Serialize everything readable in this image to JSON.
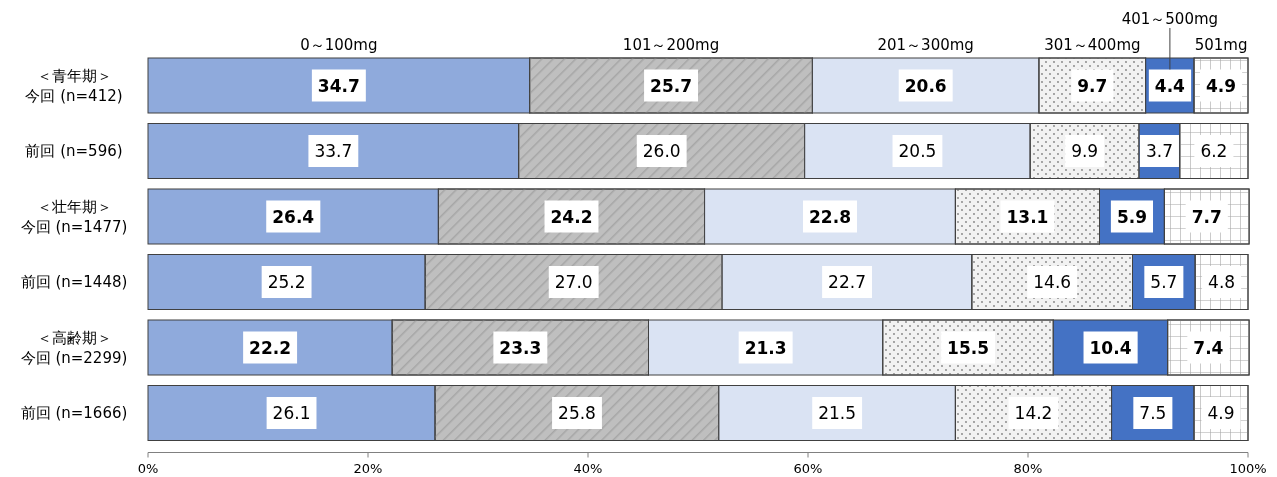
{
  "chart_data": {
    "type": "bar",
    "orientation": "horizontal",
    "stacked": true,
    "legend": "top",
    "data_labels": true,
    "categories": [
      "＜青年期＞今回 (n=412)",
      "前回 (n=596)",
      "＜壮年期＞今回 (n=1477)",
      "前回 (n=1448)",
      "＜高齢期＞今回 (n=2299)",
      "前回 (n=1666)"
    ],
    "series": [
      {
        "name": "0～100mg",
        "color": "#8faadc",
        "values": [
          34.7,
          33.7,
          26.4,
          25.2,
          22.2,
          26.1
        ],
        "value_labels": [
          "34.7",
          "33.7",
          "26.4",
          "25.2",
          "22.2",
          "26.1"
        ]
      },
      {
        "name": "101～200mg",
        "color": "#bfbfbf",
        "values": [
          25.7,
          26.0,
          24.2,
          27.0,
          23.3,
          25.8
        ],
        "value_labels": [
          "25.7",
          "26.0",
          "24.2",
          "27.0",
          "23.3",
          "25.8"
        ]
      },
      {
        "name": "201～300mg",
        "color": "#dae3f3",
        "values": [
          20.6,
          20.5,
          22.8,
          22.7,
          21.3,
          21.5
        ],
        "value_labels": [
          "20.6",
          "20.5",
          "22.8",
          "22.7",
          "21.3",
          "21.5"
        ]
      },
      {
        "name": "301～400mg",
        "color": "#f2f2f2",
        "values": [
          9.7,
          9.9,
          13.1,
          14.6,
          15.5,
          14.2
        ],
        "value_labels": [
          "9.7",
          "9.9",
          "13.1",
          "14.6",
          "15.5",
          "14.2"
        ]
      },
      {
        "name": "401～500mg",
        "color": "#4472c4",
        "values": [
          4.4,
          3.7,
          5.9,
          5.7,
          10.4,
          7.5
        ],
        "value_labels": [
          "4.4",
          "3.7",
          "5.9",
          "5.7",
          "10.4",
          "7.5"
        ]
      },
      {
        "name": "501mg",
        "color": "#ffffff",
        "values": [
          4.9,
          6.2,
          7.7,
          4.8,
          7.4,
          4.9
        ],
        "value_labels": [
          "4.9",
          "6.2",
          "7.7",
          "4.8",
          "7.4",
          "4.9"
        ]
      }
    ],
    "xlim": [
      0,
      100
    ],
    "xticks": [
      {
        "value": 0,
        "label": "0%"
      },
      {
        "value": 20,
        "label": "20%"
      },
      {
        "value": 40,
        "label": "40%"
      },
      {
        "value": 60,
        "label": "60%"
      },
      {
        "value": 80,
        "label": "80%"
      },
      {
        "value": 100,
        "label": "100%"
      }
    ]
  }
}
